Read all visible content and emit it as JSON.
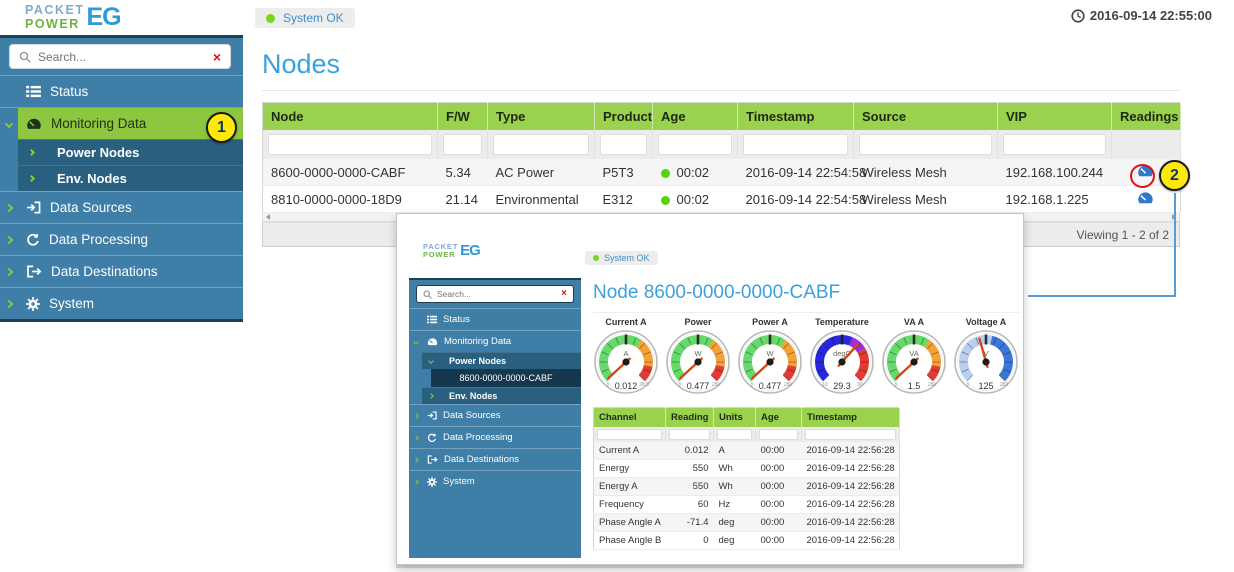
{
  "colors": {
    "sidebar_blue": "#3f7ea6",
    "sidebar_subitem_blue": "#296080",
    "sidebar_selected_dark": "#16384e",
    "accent_green": "#8dc63f",
    "table_header_green": "#9ad14f",
    "title_blue": "#3ba1dd",
    "link_blue": "#3f8fca",
    "ok_green": "#7ed321",
    "age_dot_green": "#55d400",
    "readings_icon_blue": "#2f77c9",
    "annotation_yellow": "#ffe908",
    "annotation_red": "#e01010",
    "connector_blue": "#5b9bd5",
    "needle_orange": "#d9480f"
  },
  "icons": {
    "close_glyph": "×"
  },
  "topbar": {
    "logo_line1": "PACKET",
    "logo_line2": "POWER",
    "logo_suffix": "EG",
    "status_label": "System OK",
    "timestamp": "2016-09-14 22:55:00"
  },
  "sidebar": {
    "search_placeholder": "Search...",
    "items": [
      {
        "label": "Status"
      },
      {
        "label": "Monitoring Data",
        "children": [
          {
            "label": "Power Nodes"
          },
          {
            "label": "Env. Nodes"
          }
        ]
      },
      {
        "label": "Data Sources"
      },
      {
        "label": "Data Processing"
      },
      {
        "label": "Data Destinations"
      },
      {
        "label": "System"
      }
    ]
  },
  "main": {
    "title": "Nodes",
    "table": {
      "columns": [
        "Node",
        "F/W",
        "Type",
        "Product",
        "Age",
        "Timestamp",
        "Source",
        "VIP",
        "Readings"
      ],
      "rows": [
        {
          "node": "8600-0000-0000-CABF",
          "fw": "5.34",
          "type": "AC Power",
          "product": "P5T3",
          "age": "00:02",
          "timestamp": "2016-09-14 22:54:58",
          "source": "Wireless Mesh",
          "vip": "192.168.100.244"
        },
        {
          "node": "8810-0000-0000-18D9",
          "fw": "21.14",
          "type": "Environmental",
          "product": "E312",
          "age": "00:02",
          "timestamp": "2016-09-14 22:54:58",
          "source": "Wireless Mesh",
          "vip": "192.168.1.225"
        }
      ],
      "footer": "Viewing 1 - 2 of 2"
    }
  },
  "popup": {
    "topbar": {
      "status_label": "System OK"
    },
    "sidebar": {
      "search_placeholder": "Search...",
      "items": [
        {
          "label": "Status"
        },
        {
          "label": "Monitoring Data",
          "children": [
            {
              "label": "Power Nodes",
              "children": [
                {
                  "label": "8600-0000-0000-CABF",
                  "selected": true
                }
              ]
            },
            {
              "label": "Env. Nodes"
            }
          ]
        },
        {
          "label": "Data Sources"
        },
        {
          "label": "Data Processing"
        },
        {
          "label": "Data Destinations"
        },
        {
          "label": "System"
        }
      ]
    },
    "title": "Node 8600-0000-0000-CABF",
    "gauge_themes": {
      "power": [
        {
          "to": 0.63,
          "color": "#66d96b"
        },
        {
          "to": 0.87,
          "color": "#f2a33c"
        },
        {
          "to": 1,
          "color": "#e33b2e"
        }
      ],
      "temp": [
        {
          "to": 0.58,
          "color": "#2727dd"
        },
        {
          "to": 0.72,
          "color": "#9a2fe0"
        },
        {
          "to": 1,
          "color": "#e33b2e"
        }
      ],
      "volt": [
        {
          "to": 0.55,
          "color": "#b9cff2"
        },
        {
          "to": 1,
          "color": "#3b77d6"
        }
      ]
    },
    "gauges": [
      {
        "label": "Current A",
        "unit": "A",
        "value": "0.012",
        "min": 0,
        "max": 28.5,
        "min_label": "0",
        "max_label": "28.5",
        "theme": "power"
      },
      {
        "label": "Power",
        "unit": "W",
        "value": "0.477",
        "min": 0,
        "max": 25000,
        "min_label": "0",
        "max_label": "25k",
        "theme": "power"
      },
      {
        "label": "Power A",
        "unit": "W",
        "value": "0.477",
        "min": 0,
        "max": 25000,
        "min_label": "0",
        "max_label": "25k",
        "theme": "power"
      },
      {
        "label": "Temperature",
        "unit": "degC",
        "value": "29.3",
        "min": -10,
        "max": 50,
        "min_label": "-10",
        "max_label": "50",
        "theme": "temp"
      },
      {
        "label": "VA A",
        "unit": "VA",
        "value": "1.5",
        "min": 0,
        "max": 25000,
        "min_label": "0",
        "max_label": "25k",
        "theme": "power"
      },
      {
        "label": "Voltage A",
        "unit": "V",
        "value": "125",
        "min": 0,
        "max": 283,
        "min_label": "0",
        "max_label": "283",
        "theme": "volt"
      }
    ],
    "table": {
      "columns": [
        "Channel",
        "Reading",
        "Units",
        "Age",
        "Timestamp"
      ],
      "rows": [
        {
          "channel": "Current A",
          "reading": "0.012",
          "units": "A",
          "age": "00:00",
          "timestamp": "2016-09-14 22:56:28"
        },
        {
          "channel": "Energy",
          "reading": "550",
          "units": "Wh",
          "age": "00:00",
          "timestamp": "2016-09-14 22:56:28"
        },
        {
          "channel": "Energy A",
          "reading": "550",
          "units": "Wh",
          "age": "00:00",
          "timestamp": "2016-09-14 22:56:28"
        },
        {
          "channel": "Frequency",
          "reading": "60",
          "units": "Hz",
          "age": "00:00",
          "timestamp": "2016-09-14 22:56:28"
        },
        {
          "channel": "Phase Angle A",
          "reading": "-71.4",
          "units": "deg",
          "age": "00:00",
          "timestamp": "2016-09-14 22:56:28"
        },
        {
          "channel": "Phase Angle B",
          "reading": "0",
          "units": "deg",
          "age": "00:00",
          "timestamp": "2016-09-14 22:56:28"
        }
      ]
    }
  },
  "annotations": {
    "callout_1": "1",
    "callout_2": "2"
  }
}
